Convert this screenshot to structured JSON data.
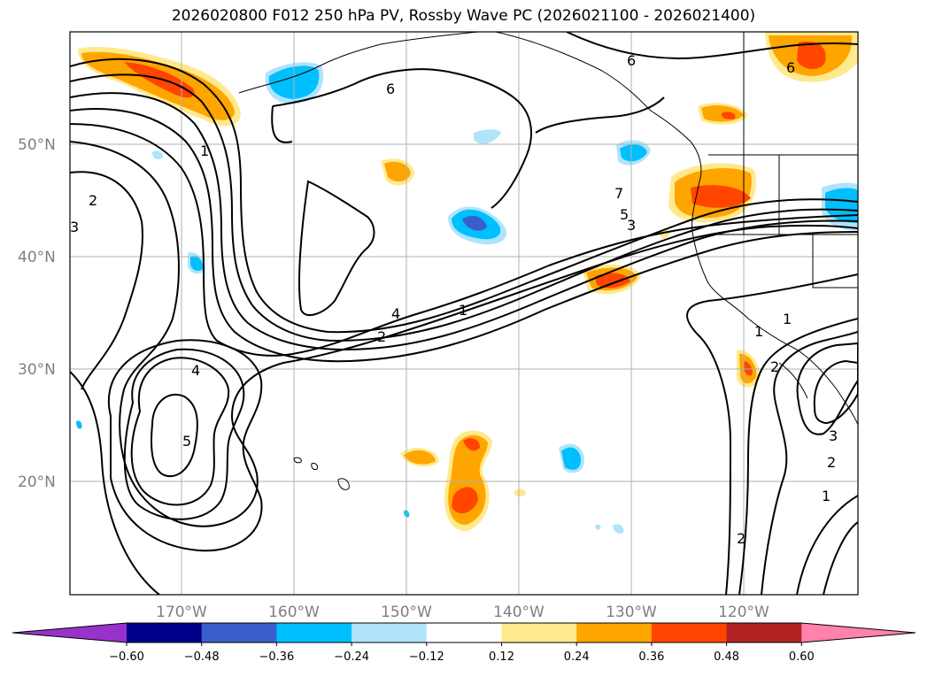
{
  "title": "2026020800 F012 250 hPa PV, Rossby Wave PC (2026021100 - 2026021400)",
  "map": {
    "latitude_labels": [
      "50°N",
      "40°N",
      "30°N",
      "20°N"
    ],
    "longitude_labels": [
      "170°W",
      "160°W",
      "150°W",
      "140°W",
      "130°W",
      "120°W"
    ],
    "contour_labels": [
      "6",
      "6",
      "6",
      "1",
      "2",
      "2",
      "3",
      "7",
      "5",
      "3",
      "4",
      "1",
      "2",
      "4",
      "5",
      "1",
      "1",
      "3",
      "2",
      "2",
      "1"
    ]
  },
  "colorbar": {
    "colors": [
      "#9932cc",
      "#00008b",
      "#3a5fcd",
      "#00bfff",
      "#afe4fb",
      "#ffffff",
      "#ffe98d",
      "#ffa500",
      "#ff4500",
      "#b22222",
      "#ff82ab"
    ],
    "tick_labels": [
      "−0.60",
      "−0.48",
      "−0.36",
      "−0.24",
      "−0.12",
      "0.12",
      "0.24",
      "0.36",
      "0.48",
      "0.60"
    ]
  },
  "palette": {
    "neg_light": "#afe4fb",
    "neg_mid": "#00bfff",
    "neg_strong": "#3a5fcd",
    "neg_max": "#00008b",
    "pos_light": "#ffe98d",
    "pos_mid": "#ffa500",
    "pos_strong": "#ff4500",
    "pos_max": "#b22222"
  }
}
